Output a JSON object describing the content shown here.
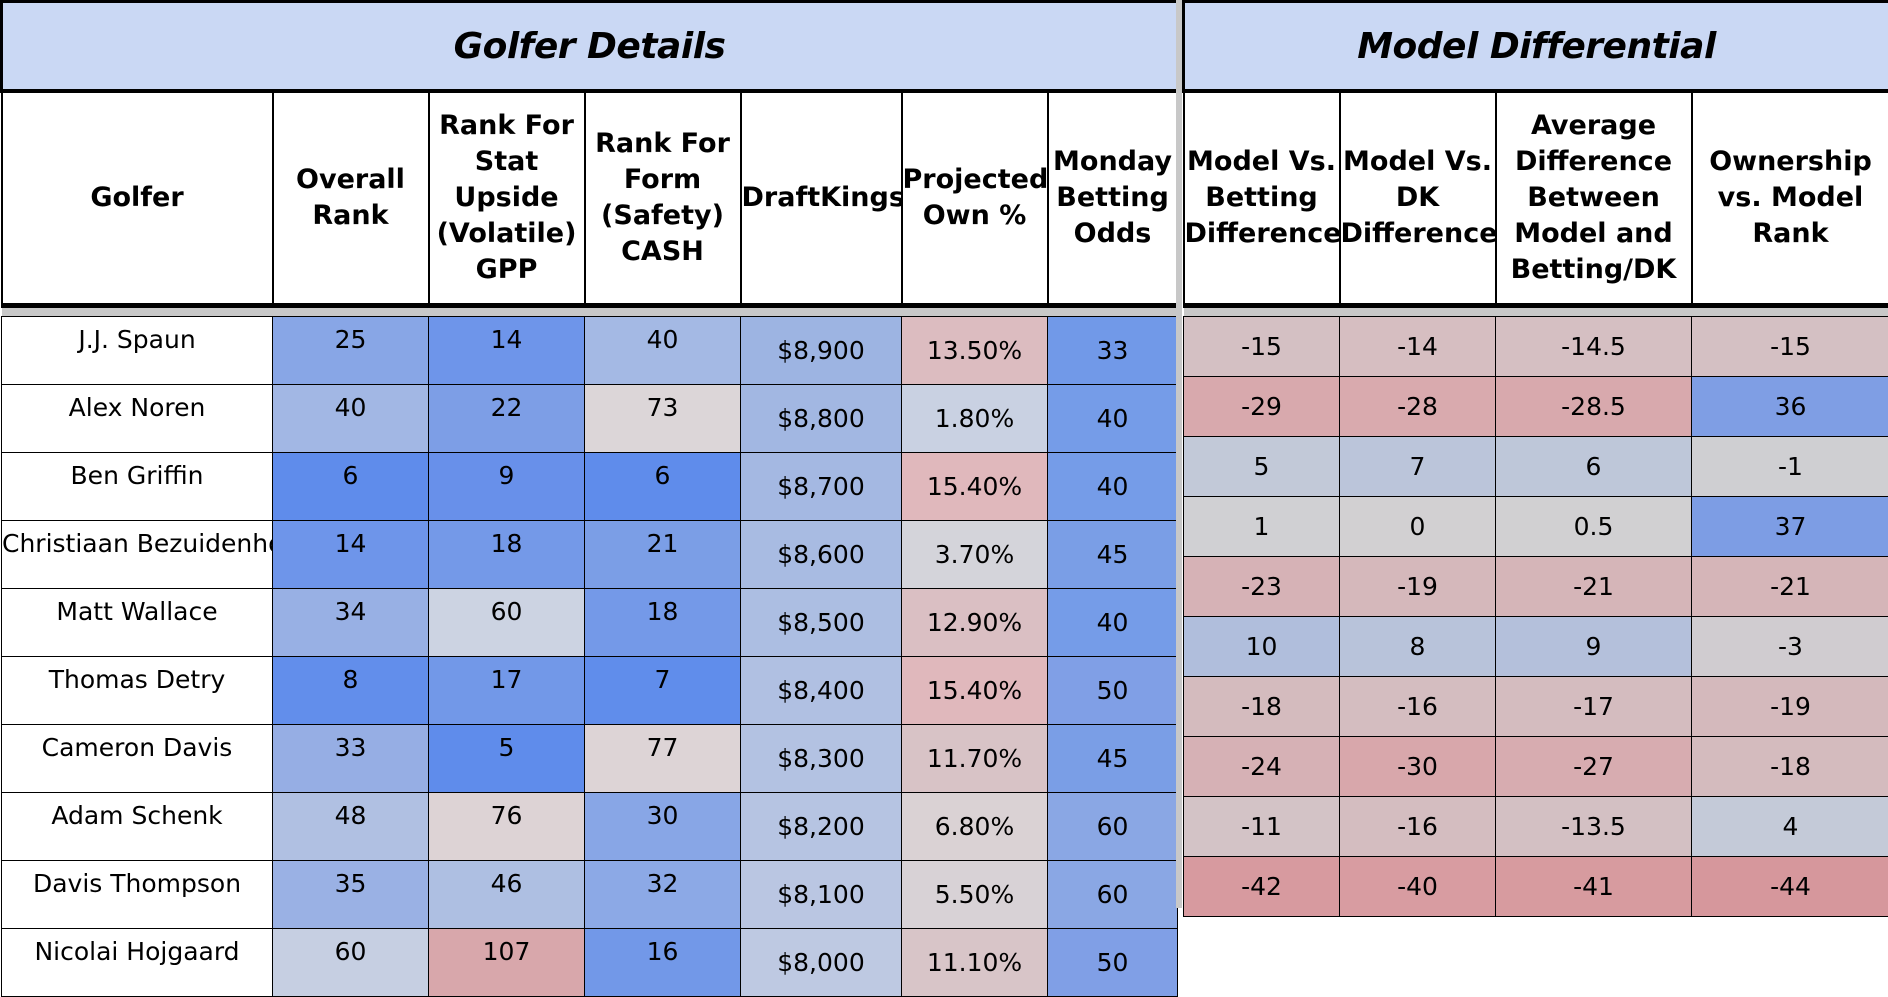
{
  "sections": {
    "left_title": "Golfer Details",
    "right_title": "Model Differential"
  },
  "headers": {
    "golfer": "Golfer",
    "overall_rank": "Overall Rank",
    "rank_stat": "Rank For Stat Upside (Volatile) GPP",
    "rank_form": "Rank For Form (Safety) CASH",
    "draftkings": "DraftKings",
    "projected_own": "Projected Own %",
    "monday_odds": "Monday Betting Odds",
    "model_vs_betting": "Model Vs. Betting Difference",
    "model_vs_dk": "Model Vs. DK Difference",
    "avg_difference": "Average Difference Between Model and Betting/DK",
    "ownership_vs_model": "Ownership vs. Model Rank"
  },
  "rows": [
    {
      "golfer": "J.J. Spaun",
      "overall": "25",
      "stat": "14",
      "form": "40",
      "dk": "$8,900",
      "own": "13.50%",
      "odds": "33",
      "mvb": "-15",
      "mvdk": "-14",
      "avg": "-14.5",
      "ovm": "-15",
      "c": {
        "overall": "#88a6e6",
        "stat": "#6e95ea",
        "form": "#a4b9e4",
        "dk": "#9db4e2",
        "own": "#dcbcc0",
        "odds": "#7199e8",
        "mvb": "#d4c0c3",
        "mvdk": "#d6bec1",
        "avg": "#d5bfc2",
        "ovm": "#d4c0c3"
      }
    },
    {
      "golfer": "Alex Noren",
      "overall": "40",
      "stat": "22",
      "form": "73",
      "dk": "$8,800",
      "own": "1.80%",
      "odds": "40",
      "mvb": "-29",
      "mvdk": "-28",
      "avg": "-28.5",
      "ovm": "36",
      "c": {
        "overall": "#a2b7e4",
        "stat": "#7d9ee6",
        "form": "#dcd6d8",
        "dk": "#a2b7e2",
        "own": "#c9d1e2",
        "odds": "#759ce8",
        "mvb": "#d8a9ad",
        "mvdk": "#d9aaae",
        "avg": "#d8a9ad",
        "ovm": "#7f9ee4"
      }
    },
    {
      "golfer": "Ben Griffin",
      "overall": "6",
      "stat": "9",
      "form": "6",
      "dk": "$8,700",
      "own": "15.40%",
      "odds": "40",
      "mvb": "5",
      "mvdk": "7",
      "avg": "6",
      "ovm": "-1",
      "c": {
        "overall": "#5f8ceb",
        "stat": "#6890ea",
        "form": "#5f8ceb",
        "dk": "#a4b8e2",
        "own": "#e0b8bc",
        "odds": "#759ce8",
        "mvb": "#c2c9d8",
        "mvdk": "#bbc5da",
        "avg": "#bec7d9",
        "ovm": "#cfcfd2"
      }
    },
    {
      "golfer": "Christiaan Bezuidenhout",
      "overall": "14",
      "stat": "18",
      "form": "21",
      "dk": "$8,600",
      "own": "3.70%",
      "odds": "45",
      "mvb": "1",
      "mvdk": "0",
      "avg": "0.5",
      "ovm": "37",
      "c": {
        "overall": "#6e95ea",
        "stat": "#7499e8",
        "form": "#7b9ee6",
        "dk": "#a8bbe2",
        "own": "#d4d4da",
        "odds": "#7a9ee6",
        "mvb": "#d0d0d3",
        "mvdk": "#d2d0d2",
        "avg": "#d1d0d2",
        "ovm": "#7d9de4"
      }
    },
    {
      "golfer": "Matt Wallace",
      "overall": "34",
      "stat": "60",
      "form": "18",
      "dk": "$8,500",
      "own": "12.90%",
      "odds": "40",
      "mvb": "-23",
      "mvdk": "-19",
      "avg": "-21",
      "ovm": "-21",
      "c": {
        "overall": "#98b0e4",
        "stat": "#ccd3e2",
        "form": "#7499e8",
        "dk": "#acbee2",
        "own": "#dabfc3",
        "odds": "#759ce8",
        "mvb": "#d6b2b6",
        "mvdk": "#d5b8bb",
        "avg": "#d5b5b8",
        "ovm": "#d5b5b8"
      }
    },
    {
      "golfer": "Thomas Detry",
      "overall": "8",
      "stat": "17",
      "form": "7",
      "dk": "$8,400",
      "own": "15.40%",
      "odds": "50",
      "mvb": "10",
      "mvdk": "8",
      "avg": "9",
      "ovm": "-3",
      "c": {
        "overall": "#628eeb",
        "stat": "#7298e8",
        "form": "#608deb",
        "dk": "#b0c0e2",
        "own": "#e0b8bc",
        "odds": "#809fe6",
        "mvb": "#b0bedc",
        "mvdk": "#b8c3da",
        "avg": "#b4c0db",
        "ovm": "#d0ccd0"
      }
    },
    {
      "golfer": "Cameron Davis",
      "overall": "33",
      "stat": "5",
      "form": "77",
      "dk": "$8,300",
      "own": "11.70%",
      "odds": "45",
      "mvb": "-18",
      "mvdk": "-16",
      "avg": "-17",
      "ovm": "-19",
      "c": {
        "overall": "#96aee4",
        "stat": "#5f8ceb",
        "form": "#ddd4d6",
        "dk": "#b3c2e2",
        "own": "#d8c3c6",
        "odds": "#7a9ee6",
        "mvb": "#d4bbbe",
        "mvdk": "#d4bdc0",
        "avg": "#d4bcbf",
        "ovm": "#d4b9bc"
      }
    },
    {
      "golfer": "Adam Schenk",
      "overall": "48",
      "stat": "76",
      "form": "30",
      "dk": "$8,200",
      "own": "6.80%",
      "odds": "60",
      "mvb": "-24",
      "mvdk": "-30",
      "avg": "-27",
      "ovm": "-18",
      "c": {
        "overall": "#b0c0e2",
        "stat": "#ddd3d5",
        "form": "#88a6e6",
        "dk": "#b6c4e2",
        "own": "#dad2d4",
        "odds": "#8aa7e4",
        "mvb": "#d6b1b5",
        "mvdk": "#d8a7ab",
        "avg": "#d7acb0",
        "ovm": "#d4bbbe"
      }
    },
    {
      "golfer": "Davis Thompson",
      "overall": "35",
      "stat": "46",
      "form": "32",
      "dk": "$8,100",
      "own": "5.50%",
      "odds": "60",
      "mvb": "-11",
      "mvdk": "-16",
      "avg": "-13.5",
      "ovm": "4",
      "c": {
        "overall": "#9ab1e4",
        "stat": "#aebfe2",
        "form": "#8ca9e6",
        "dk": "#bac6e2",
        "own": "#d8d2d6",
        "odds": "#8aa7e4",
        "mvb": "#d3c3c6",
        "mvdk": "#d4bdc0",
        "avg": "#d3c0c3",
        "ovm": "#c4cad8"
      }
    },
    {
      "golfer": "Nicolai Hojgaard",
      "overall": "60",
      "stat": "107",
      "form": "16",
      "dk": "$8,000",
      "own": "11.10%",
      "odds": "50",
      "mvb": "-42",
      "mvdk": "-40",
      "avg": "-41",
      "ovm": "-44",
      "c": {
        "overall": "#c6cfe2",
        "stat": "#d8a7ab",
        "form": "#7298e8",
        "dk": "#bec9e2",
        "own": "#d8c5c8",
        "odds": "#809fe6",
        "mvb": "#d79a9f",
        "mvdk": "#d89ca1",
        "avg": "#d79b9f",
        "ovm": "#d6979c"
      }
    }
  ]
}
